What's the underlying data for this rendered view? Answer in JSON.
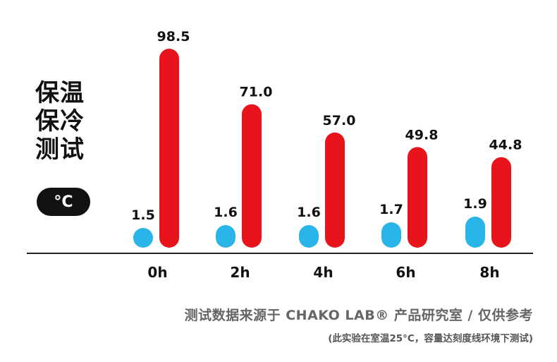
{
  "title_lines": [
    "保温",
    "保冷",
    "测试"
  ],
  "unit_label": "°C",
  "chart_data": {
    "type": "bar",
    "categories": [
      "0h",
      "2h",
      "4h",
      "6h",
      "8h"
    ],
    "series": [
      {
        "values": [
          1.5,
          1.6,
          1.6,
          1.7,
          1.9
        ],
        "labels": [
          "1.5",
          "1.6",
          "1.6",
          "1.7",
          "1.9"
        ],
        "color": "#29b5e8"
      },
      {
        "values": [
          98.5,
          71.0,
          57.0,
          49.8,
          44.8
        ],
        "labels": [
          "98.5",
          "71.0",
          "57.0",
          "49.8",
          "44.8"
        ],
        "color": "#e8141c"
      }
    ],
    "grid": false,
    "legend": "none"
  },
  "footer": {
    "source": "测试数据来源于 CHAKO LAB® 产品研究室  /  仅供参考",
    "note": "(此实验在室温25°C，容量达刻度线环境下测试)"
  },
  "colors": {
    "cold": "#29b5e8",
    "hot": "#e8141c",
    "text": "#111111",
    "footer": "#666666"
  }
}
